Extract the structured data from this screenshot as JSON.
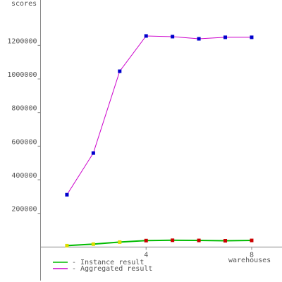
{
  "chart_data": {
    "type": "line",
    "ylabel": "scores",
    "xlabel": "warehouses",
    "x": [
      1,
      2,
      3,
      4,
      5,
      6,
      7,
      8
    ],
    "series": [
      {
        "name": "- Instance result",
        "color": "#00bb00",
        "point_colors": [
          "#dddd00",
          "#dddd00",
          "#dddd00",
          "#cc0000",
          "#cc0000",
          "#cc0000",
          "#cc0000",
          "#cc0000"
        ],
        "values": [
          8000,
          17000,
          29000,
          38000,
          40000,
          39000,
          37000,
          39000
        ]
      },
      {
        "name": "- Aggregated result",
        "color": "#cc00cc",
        "point_colors": [
          "#0000cc",
          "#0000cc",
          "#0000cc",
          "#0000cc",
          "#0000cc",
          "#0000cc",
          "#0000cc",
          "#0000cc"
        ],
        "values": [
          311000,
          559000,
          1046000,
          1256000,
          1252000,
          1239000,
          1248000,
          1248000
        ]
      }
    ],
    "xlim": [
      0,
      9.15
    ],
    "xticks": [
      4,
      8
    ],
    "ylim": [
      -200000,
      1470000
    ],
    "yticks": [
      200000,
      400000,
      600000,
      800000,
      1000000,
      1200000
    ]
  }
}
